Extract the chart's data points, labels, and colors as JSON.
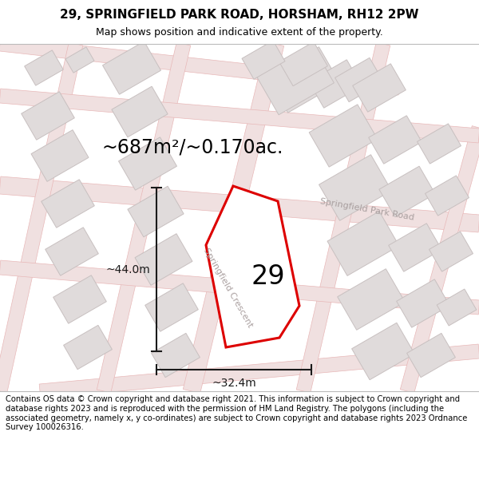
{
  "title_line1": "29, SPRINGFIELD PARK ROAD, HORSHAM, RH12 2PW",
  "title_line2": "Map shows position and indicative extent of the property.",
  "footer_text": "Contains OS data © Crown copyright and database right 2021. This information is subject to Crown copyright and database rights 2023 and is reproduced with the permission of HM Land Registry. The polygons (including the associated geometry, namely x, y co-ordinates) are subject to Crown copyright and database rights 2023 Ordnance Survey 100026316.",
  "area_label": "~687m²/~0.170ac.",
  "number_label": "29",
  "width_label": "~32.4m",
  "height_label": "~44.0m",
  "map_bg_color": "#faf8f8",
  "building_fill": "#e0dbdb",
  "building_edge": "#c8c0c0",
  "road_line_color": "#e8b8b8",
  "road_fill_color": "#f0e0e0",
  "highlight_color": "#dd0000",
  "highlight_fill": "#ffffff",
  "street_label_color": "#aaa0a0",
  "dim_color": "#1a1a1a",
  "title_fontsize": 11,
  "subtitle_fontsize": 9,
  "footer_fontsize": 7.2,
  "area_fontsize": 17,
  "number_fontsize": 24,
  "dim_fontsize": 10,
  "street_fontsize": 8
}
